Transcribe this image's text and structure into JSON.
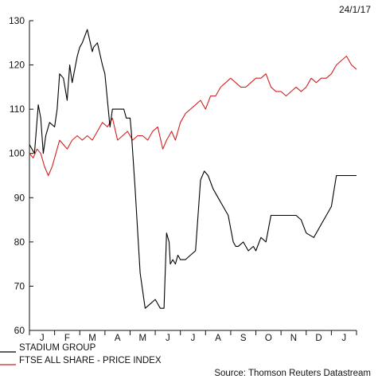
{
  "chart_data": {
    "type": "line",
    "date": "24/1/17",
    "source": "Source: Thomson Reuters Datastream",
    "ylim": [
      60,
      130
    ],
    "yticks": [
      60,
      70,
      80,
      90,
      100,
      110,
      120,
      130
    ],
    "grid": false,
    "legend_position": "bottom-left",
    "month_labels": [
      "J",
      "F",
      "M",
      "A",
      "M",
      "J",
      "J",
      "A",
      "S",
      "O",
      "N",
      "D",
      "J"
    ],
    "x_month_positions": [
      0.5,
      1.5,
      2.5,
      3.5,
      4.5,
      5.5,
      6.5,
      7.5,
      8.5,
      9.5,
      10.5,
      11.5,
      12.5
    ],
    "series": [
      {
        "name": "STADIUM GROUP",
        "color": "#000000",
        "x": [
          0.0,
          0.2,
          0.35,
          0.45,
          0.55,
          0.65,
          0.8,
          1.0,
          1.1,
          1.2,
          1.35,
          1.5,
          1.6,
          1.7,
          1.8,
          1.9,
          2.0,
          2.1,
          2.3,
          2.5,
          2.55,
          2.7,
          2.9,
          3.0,
          3.1,
          3.2,
          3.3,
          3.5,
          3.6,
          3.75,
          3.85,
          4.0,
          4.05,
          4.2,
          4.4,
          4.6,
          4.8,
          5.0,
          5.2,
          5.35,
          5.45,
          5.55,
          5.6,
          5.7,
          5.8,
          5.9,
          6.0,
          6.2,
          6.4,
          6.6,
          6.8,
          6.95,
          7.1,
          7.3,
          7.5,
          7.7,
          7.9,
          8.0,
          8.1,
          8.2,
          8.3,
          8.5,
          8.7,
          8.9,
          9.0,
          9.2,
          9.4,
          9.6,
          9.8,
          10.0,
          10.2,
          10.4,
          10.6,
          10.8,
          11.0,
          11.3,
          11.6,
          11.8,
          12.0,
          12.2,
          12.4,
          12.55,
          12.7,
          12.85,
          13.0
        ],
        "values": [
          102,
          100,
          111,
          108,
          100,
          104,
          107,
          106,
          110,
          118,
          117,
          112,
          120,
          116,
          119,
          122,
          124,
          125,
          128,
          123,
          124,
          125,
          120,
          118,
          112,
          106,
          110,
          110,
          110,
          110,
          108,
          108,
          105,
          92,
          73,
          65,
          66,
          67,
          65,
          65,
          82,
          80,
          75,
          76,
          75,
          77,
          76,
          76,
          77,
          78,
          94,
          96,
          95,
          92,
          90,
          88,
          86,
          83,
          80,
          79,
          79,
          80,
          78,
          79,
          78,
          81,
          80,
          86,
          86,
          86,
          86,
          86,
          86,
          85,
          82,
          81,
          84,
          86,
          88,
          95,
          95,
          95,
          95,
          95,
          95
        ]
      },
      {
        "name": "FTSE ALL SHARE - PRICE INDEX",
        "color": "#d42020",
        "x": [
          0.0,
          0.15,
          0.3,
          0.45,
          0.6,
          0.75,
          0.9,
          1.05,
          1.2,
          1.35,
          1.5,
          1.7,
          1.9,
          2.1,
          2.3,
          2.5,
          2.7,
          2.9,
          3.1,
          3.3,
          3.5,
          3.7,
          3.9,
          4.1,
          4.3,
          4.5,
          4.7,
          4.9,
          5.1,
          5.3,
          5.45,
          5.55,
          5.65,
          5.8,
          6.0,
          6.2,
          6.4,
          6.6,
          6.8,
          7.0,
          7.2,
          7.4,
          7.6,
          7.8,
          8.0,
          8.2,
          8.4,
          8.6,
          8.8,
          9.0,
          9.2,
          9.4,
          9.6,
          9.8,
          10.0,
          10.2,
          10.4,
          10.6,
          10.8,
          11.0,
          11.2,
          11.4,
          11.6,
          11.8,
          12.0,
          12.2,
          12.4,
          12.6,
          12.8,
          13.0
        ],
        "values": [
          100,
          99,
          101,
          100,
          97,
          95,
          97,
          100,
          103,
          102,
          101,
          103,
          104,
          103,
          104,
          103,
          105,
          107,
          106,
          108,
          103,
          104,
          105,
          103,
          104,
          104,
          103,
          105,
          106,
          101,
          103,
          104,
          105,
          103,
          107,
          109,
          110,
          111,
          112,
          110,
          113,
          113,
          115,
          116,
          117,
          116,
          115,
          115,
          116,
          117,
          117,
          118,
          115,
          114,
          114,
          113,
          114,
          115,
          114,
          115,
          117,
          116,
          117,
          117,
          118,
          120,
          121,
          122,
          120,
          119
        ]
      }
    ]
  }
}
